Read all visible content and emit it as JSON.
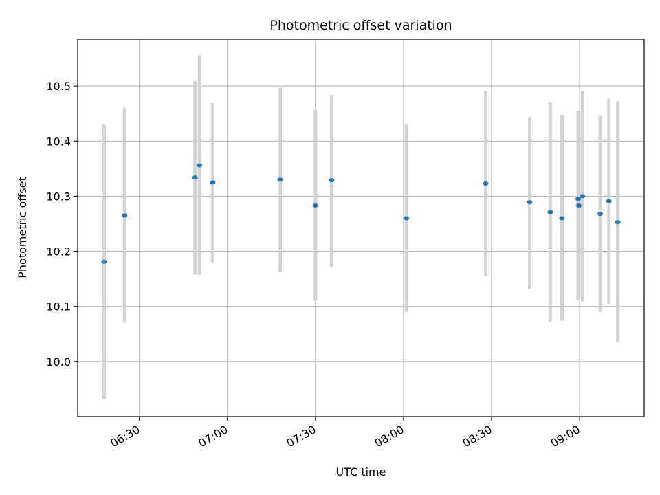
{
  "chart_data": {
    "type": "scatter",
    "title": "Photometric offset variation",
    "xlabel": "UTC time",
    "ylabel": "Photometric offset",
    "x_unit": "UTC time (HH:MM)",
    "xlim": [
      "06:09",
      "09:22"
    ],
    "ylim": [
      9.9,
      10.585
    ],
    "grid": true,
    "x_ticks": [
      "06:30",
      "07:00",
      "07:30",
      "08:00",
      "08:30",
      "09:00"
    ],
    "y_ticks": [
      10.0,
      10.1,
      10.2,
      10.3,
      10.4,
      10.5
    ],
    "colors": {
      "point": "#1f77b4",
      "errorbar": "#d3d3d3",
      "grid": "#b0b0b0"
    },
    "points": [
      {
        "t": "06:18",
        "y": 10.181,
        "lo": 9.932,
        "hi": 10.43
      },
      {
        "t": "06:25",
        "y": 10.265,
        "lo": 10.07,
        "hi": 10.461
      },
      {
        "t": "06:49",
        "y": 10.334,
        "lo": 10.158,
        "hi": 10.509
      },
      {
        "t": "06:50:30",
        "y": 10.356,
        "lo": 10.157,
        "hi": 10.556
      },
      {
        "t": "06:55",
        "y": 10.325,
        "lo": 10.18,
        "hi": 10.469
      },
      {
        "t": "07:18",
        "y": 10.33,
        "lo": 10.163,
        "hi": 10.497
      },
      {
        "t": "07:30",
        "y": 10.283,
        "lo": 10.11,
        "hi": 10.456
      },
      {
        "t": "07:35:30",
        "y": 10.329,
        "lo": 10.172,
        "hi": 10.484
      },
      {
        "t": "08:01",
        "y": 10.26,
        "lo": 10.09,
        "hi": 10.43
      },
      {
        "t": "08:28",
        "y": 10.323,
        "lo": 10.155,
        "hi": 10.49
      },
      {
        "t": "08:43",
        "y": 10.289,
        "lo": 10.132,
        "hi": 10.444
      },
      {
        "t": "08:50",
        "y": 10.271,
        "lo": 10.072,
        "hi": 10.47
      },
      {
        "t": "08:54",
        "y": 10.26,
        "lo": 10.074,
        "hi": 10.447
      },
      {
        "t": "08:59:30",
        "y": 10.295,
        "lo": 10.112,
        "hi": 10.455
      },
      {
        "t": "08:59:45",
        "y": 10.283,
        "lo": 10.112,
        "hi": 10.455
      },
      {
        "t": "09:01",
        "y": 10.3,
        "lo": 10.109,
        "hi": 10.491
      },
      {
        "t": "09:07",
        "y": 10.268,
        "lo": 10.09,
        "hi": 10.446
      },
      {
        "t": "09:10",
        "y": 10.291,
        "lo": 10.105,
        "hi": 10.477
      },
      {
        "t": "09:13",
        "y": 10.253,
        "lo": 10.035,
        "hi": 10.472
      }
    ]
  }
}
